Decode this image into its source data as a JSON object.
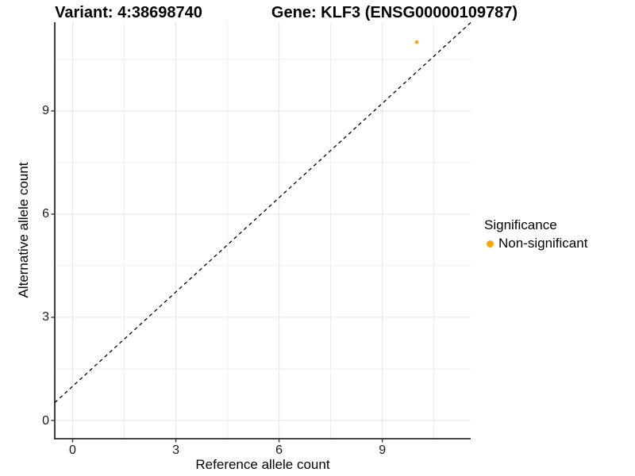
{
  "titles": {
    "variant": "Variant: 4:38698740",
    "gene": "Gene: KLF3 (ENSG00000109787)"
  },
  "axes": {
    "x_label": "Reference allele count",
    "y_label": "Alternative allele count"
  },
  "legend": {
    "title": "Significance",
    "entries": [
      {
        "label": "Non-significant",
        "color": "#FFA500"
      }
    ]
  },
  "colors": {
    "point": "#FFA500",
    "grid_major": "#E8E8E8",
    "grid_minor": "#F0F0F0",
    "axis_line": "#2b2b2b",
    "tick_mark": "#333333",
    "identity_line": "#000000"
  },
  "chart_data": {
    "type": "scatter",
    "title": "Variant: 4:38698740 — Gene: KLF3 (ENSG00000109787)",
    "xlabel": "Reference allele count",
    "ylabel": "Alternative allele count",
    "xlim": [
      -0.52,
      11.6
    ],
    "ylim": [
      -0.52,
      11.6
    ],
    "x_ticks": [
      0,
      3,
      6,
      9
    ],
    "y_ticks": [
      0,
      3,
      6,
      9
    ],
    "x_minor": [
      1.5,
      4.5,
      7.5,
      10.5
    ],
    "y_minor": [
      1.5,
      4.5,
      7.5,
      10.5
    ],
    "grid": "major+minor, light gray, white background",
    "identity_line": {
      "equation": "y = x",
      "style": "dashed",
      "color": "black"
    },
    "series": [
      {
        "name": "Non-significant",
        "color": "#FFA500",
        "points": [
          [
            10,
            11
          ]
        ]
      }
    ],
    "legend": {
      "title": "Significance",
      "position": "right",
      "entries": [
        "Non-significant"
      ]
    }
  }
}
